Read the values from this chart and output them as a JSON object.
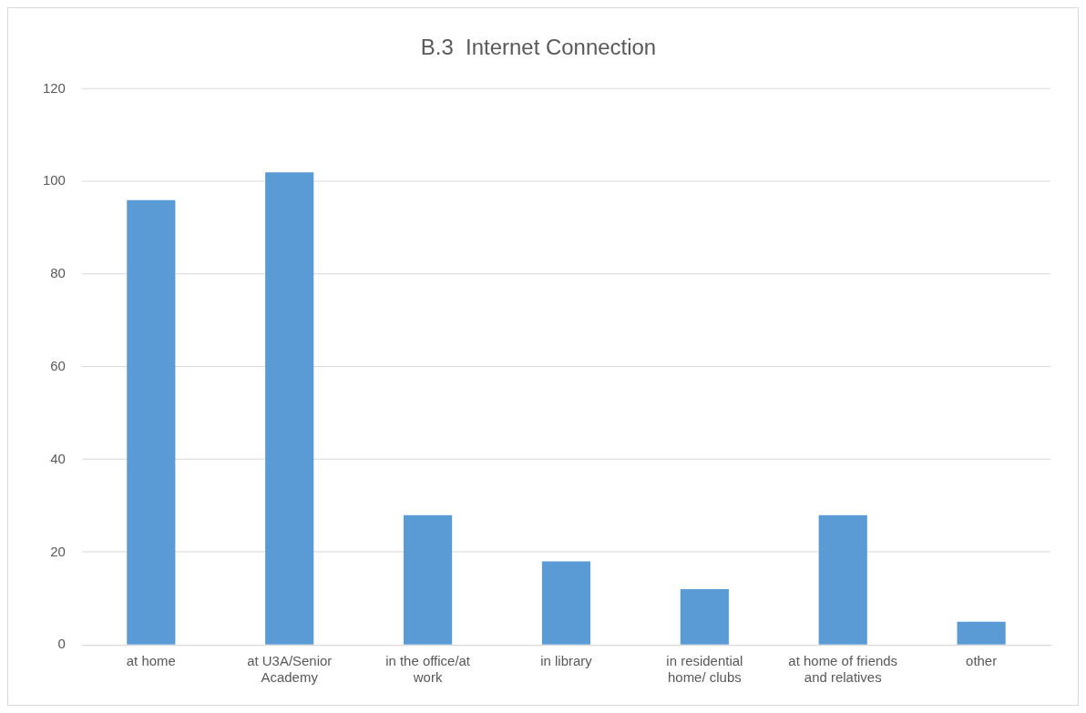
{
  "chart_data": {
    "type": "bar",
    "title": "B.3  Internet Connection",
    "categories": [
      "at home",
      "at U3A/Senior Academy",
      "in the office/at work",
      "in library",
      "in residential home/ clubs",
      "at home of friends and relatives",
      "other"
    ],
    "values": [
      96,
      102,
      28,
      18,
      12,
      28,
      5
    ],
    "color": "#5b9bd5",
    "ylim": [
      0,
      120
    ],
    "yticks": [
      0,
      20,
      40,
      60,
      80,
      100,
      120
    ],
    "grid": "y"
  }
}
